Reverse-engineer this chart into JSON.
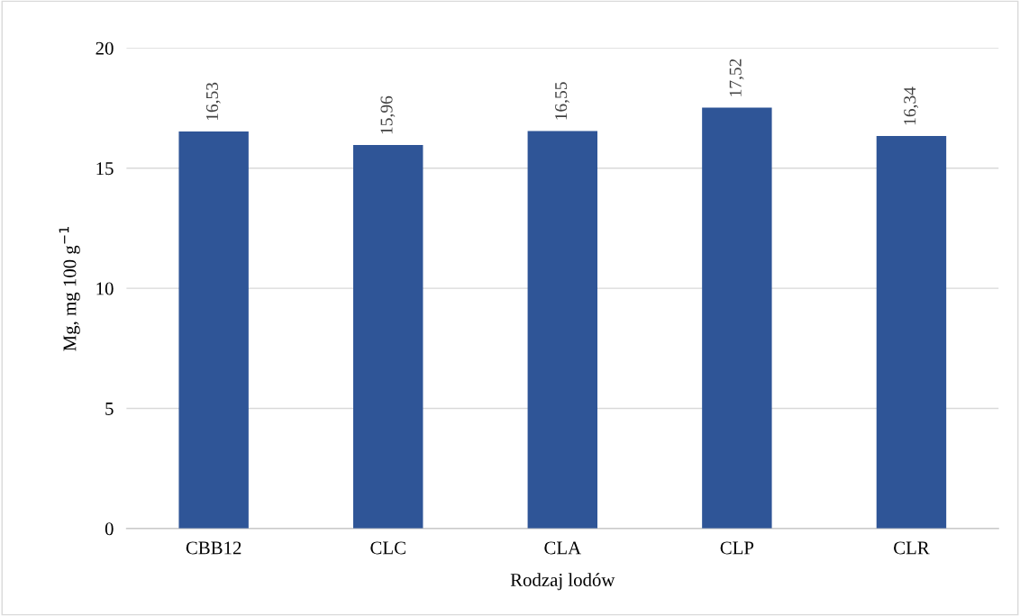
{
  "chart_data": {
    "type": "bar",
    "xlabel": "Rodzaj lodów",
    "ylabel": "Mg, mg 100 g$^{−1}$",
    "categories": [
      "CBB12",
      "CLC",
      "CLA",
      "CLP",
      "CLR"
    ],
    "values": [
      16.53,
      15.96,
      16.55,
      17.52,
      16.34
    ],
    "value_labels": [
      "16,53",
      "15,96",
      "16,55",
      "17,52",
      "16,34"
    ],
    "color": "#2f5597",
    "ylim": [
      0,
      20
    ],
    "yticks": [
      0,
      5,
      10,
      15,
      20
    ],
    "grid": "y",
    "legend": false
  }
}
